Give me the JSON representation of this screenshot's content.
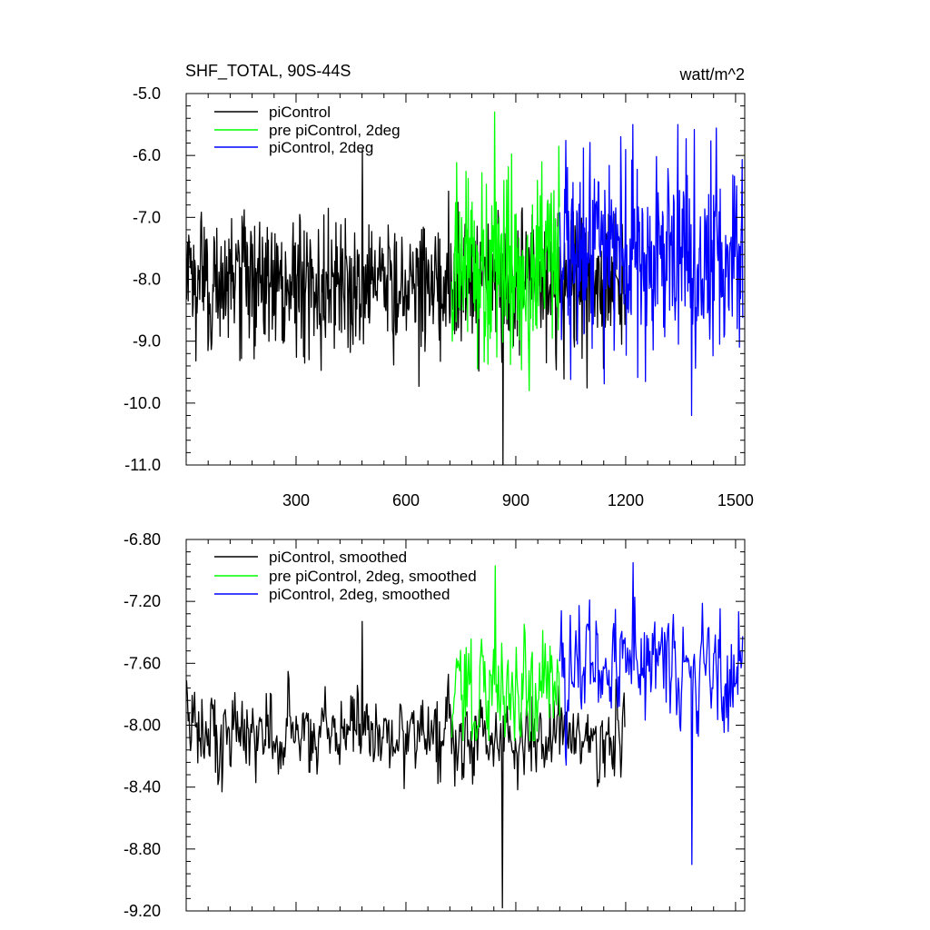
{
  "chart_data": [
    {
      "type": "line",
      "title": "SHF_TOTAL, 90S-44S",
      "units": "watt/m^2",
      "xlim": [
        0,
        1525
      ],
      "ylim": [
        -11.0,
        -5.0
      ],
      "yticks": [
        -5.0,
        -6.0,
        -7.0,
        -8.0,
        -9.0,
        -10.0,
        -11.0
      ],
      "ytick_labels": [
        "-5.0",
        "-6.0",
        "-7.0",
        "-8.0",
        "-9.0",
        "-10.0",
        "-11.0"
      ],
      "xticks": [
        300,
        600,
        900,
        1200,
        1500
      ],
      "xtick_labels": [
        "300",
        "600",
        "900",
        "1200",
        "1500"
      ],
      "legend_position": "top-left",
      "series": [
        {
          "name": "piControl",
          "color": "#000000",
          "x_range": [
            1,
            1200
          ],
          "mean": -8.05,
          "spread": 0.55,
          "min": -11.0,
          "max": -5.9
        },
        {
          "name": "pre piControl, 2deg",
          "color": "#00ff00",
          "x_range": [
            725,
            1020
          ],
          "mean": -7.8,
          "spread": 0.75,
          "min": -9.8,
          "max": -5.3
        },
        {
          "name": "piControl, 2deg",
          "color": "#0000ff",
          "x_range": [
            1020,
            1520
          ],
          "mean": -7.6,
          "spread": 0.8,
          "min": -10.2,
          "max": -5.5
        }
      ]
    },
    {
      "type": "line",
      "title": "",
      "ylim": [
        -9.2,
        -6.8
      ],
      "yticks": [
        -6.8,
        -7.2,
        -7.6,
        -8.0,
        -8.4,
        -8.8,
        -9.2
      ],
      "ytick_labels": [
        "-6.80",
        "-7.20",
        "-7.60",
        "-8.00",
        "-8.40",
        "-8.80",
        "-9.20"
      ],
      "xlim": [
        0,
        1525
      ],
      "xticks": [
        300,
        600,
        900,
        1200,
        1500
      ],
      "legend_position": "top-left",
      "series": [
        {
          "name": "piControl, smoothed",
          "color": "#000000",
          "x_range": [
            1,
            1200
          ],
          "mean": -8.05,
          "spread": 0.2,
          "min": -9.18,
          "max": -7.33
        },
        {
          "name": "pre piControl, 2deg, smoothed",
          "color": "#00ff00",
          "x_range": [
            725,
            1020
          ],
          "mean": -7.75,
          "spread": 0.25,
          "min": -8.1,
          "max": -6.97
        },
        {
          "name": "piControl, 2deg, smoothed",
          "color": "#0000ff",
          "x_range": [
            1020,
            1520
          ],
          "mean": -7.6,
          "spread": 0.3,
          "min": -8.9,
          "max": -6.95
        }
      ]
    }
  ]
}
